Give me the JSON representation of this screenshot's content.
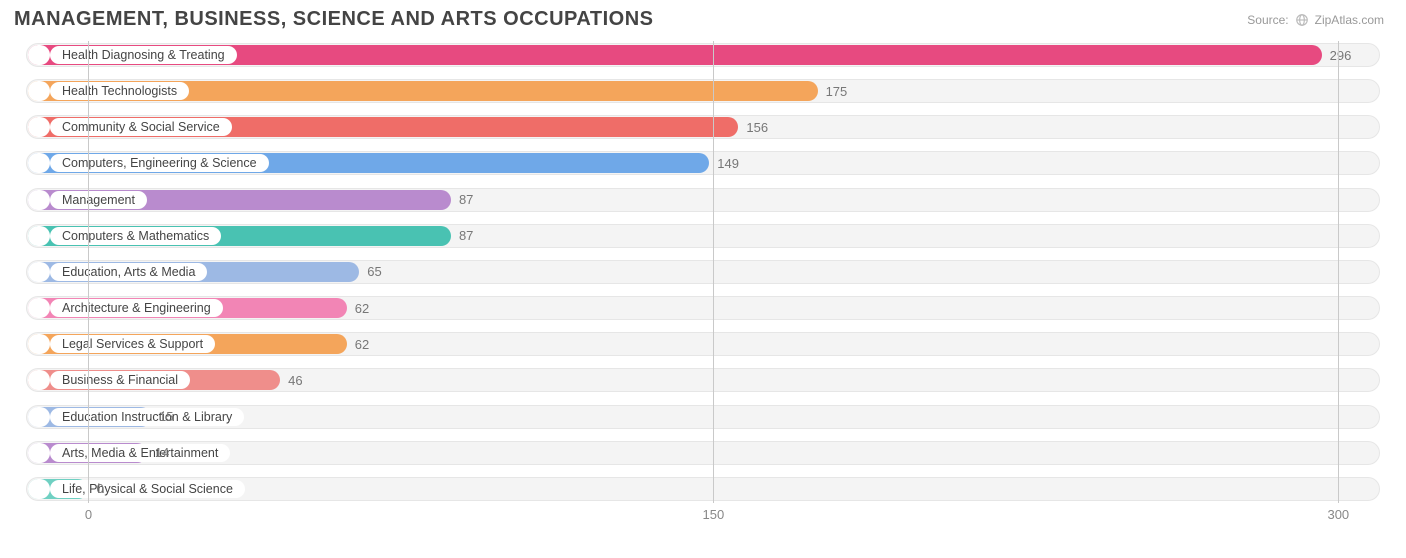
{
  "title": "MANAGEMENT, BUSINESS, SCIENCE AND ARTS OCCUPATIONS",
  "source": {
    "label": "Source:",
    "name": "ZipAtlas.com"
  },
  "chart": {
    "type": "bar-horizontal",
    "xmin": -15,
    "xmax": 310,
    "ticks": [
      {
        "value": 0,
        "label": "0"
      },
      {
        "value": 150,
        "label": "150"
      },
      {
        "value": 300,
        "label": "300"
      }
    ],
    "grid_color": "#c9c9c9",
    "track_bg": "#f4f4f4",
    "track_border": "#e6e6e6",
    "title_color": "#444444",
    "label_color": "#444444",
    "value_color": "#777777",
    "axis_color": "#888888",
    "title_fontsize": 20,
    "label_fontsize": 12.5,
    "value_fontsize": 13,
    "bar_radius": 12,
    "bars": [
      {
        "label": "Health Diagnosing & Treating",
        "value": 296,
        "color": "#e74a80"
      },
      {
        "label": "Health Technologists",
        "value": 175,
        "color": "#f4a55b"
      },
      {
        "label": "Community & Social Service",
        "value": 156,
        "color": "#ef6d68"
      },
      {
        "label": "Computers, Engineering & Science",
        "value": 149,
        "color": "#6fa8e8"
      },
      {
        "label": "Management",
        "value": 87,
        "color": "#b98bce"
      },
      {
        "label": "Computers & Mathematics",
        "value": 87,
        "color": "#49c2b2"
      },
      {
        "label": "Education, Arts & Media",
        "value": 65,
        "color": "#9db9e4"
      },
      {
        "label": "Architecture & Engineering",
        "value": 62,
        "color": "#f285b5"
      },
      {
        "label": "Legal Services & Support",
        "value": 62,
        "color": "#f4a55b"
      },
      {
        "label": "Business & Financial",
        "value": 46,
        "color": "#ef8e8b"
      },
      {
        "label": "Education Instruction & Library",
        "value": 15,
        "color": "#9db9e4"
      },
      {
        "label": "Arts, Media & Entertainment",
        "value": 14,
        "color": "#b98bce"
      },
      {
        "label": "Life, Physical & Social Science",
        "value": 0,
        "color": "#6fd0c2"
      }
    ]
  }
}
